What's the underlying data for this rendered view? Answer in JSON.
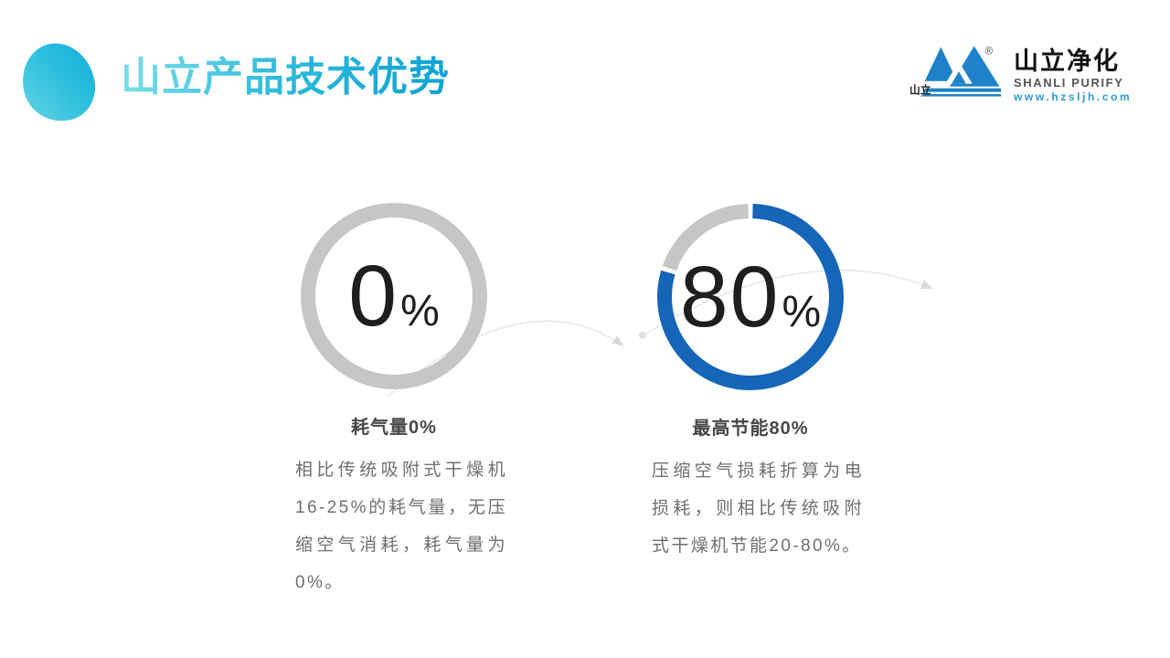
{
  "header": {
    "title": "山立产品技术优势",
    "logo": {
      "mark_label": "山立",
      "registered_mark": "®",
      "company_cn": "山立净化",
      "company_en": "SHANLI PURIFY",
      "website": "www.hzsljh.com"
    }
  },
  "stats": [
    {
      "value": "0",
      "unit": "%",
      "percent": 0,
      "label": "耗气量0%",
      "description": "相比传统吸附式干燥机16-25%的耗气量，无压缩空气消耗，耗气量为0%。",
      "ring_color": "#c6c6c6",
      "track_color": "#c6c6c6"
    },
    {
      "value": "80",
      "unit": "%",
      "percent": 80,
      "label": "最高节能80%",
      "description": "压缩空气损耗折算为电损耗，则相比传统吸附式干燥机节能20-80%。",
      "ring_color": "#1565b8",
      "track_color": "#c6c6c6"
    }
  ],
  "colors": {
    "accent_blue": "#1565b8",
    "ring_gray": "#c6c6c6",
    "logo_blue": "#1e82c8",
    "title_cyan_light": "#7ee0ea",
    "title_cyan_dark": "#0fa2d2"
  }
}
